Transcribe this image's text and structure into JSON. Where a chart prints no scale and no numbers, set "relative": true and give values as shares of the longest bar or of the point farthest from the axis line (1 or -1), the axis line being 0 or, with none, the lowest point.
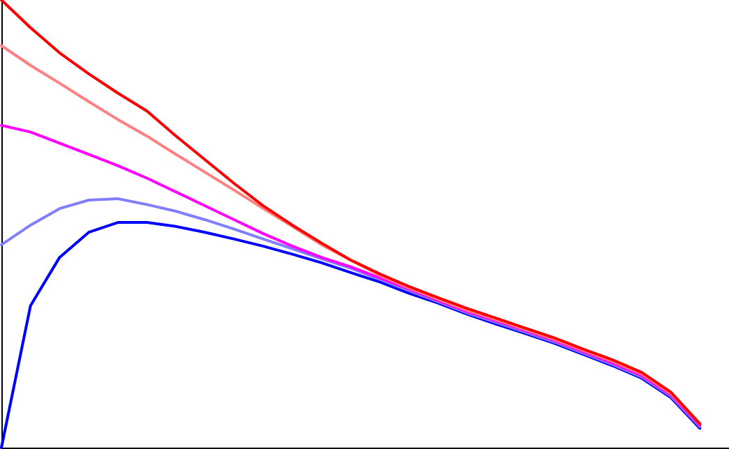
{
  "chart_data": {
    "type": "line",
    "relative": true,
    "marker": "none",
    "line_style": "solid",
    "grid": false,
    "tick_labels": false,
    "categories": [
      null,
      null,
      null,
      null,
      null,
      null,
      null,
      null,
      null,
      null,
      null,
      null,
      null,
      null,
      null,
      null,
      null,
      null,
      null,
      null,
      null,
      null,
      null,
      null,
      null,
      null
    ],
    "series": [
      {
        "color": "#0000ff",
        "values": [
          0,
          0.317,
          0.425,
          0.481,
          0.503,
          0.503,
          0.494,
          0.481,
          0.466,
          0.45,
          0.432,
          0.413,
          0.391,
          0.37,
          0.345,
          0.323,
          0.298,
          0.276,
          0.255,
          0.233,
          0.208,
          0.183,
          0.155,
          0.112,
          0.043,
          null
        ]
      },
      {
        "color": "#8080ff",
        "values": [
          0.453,
          0.497,
          0.534,
          0.553,
          0.556,
          0.543,
          0.528,
          0.509,
          0.488,
          0.466,
          0.444,
          0.422,
          0.401,
          0.376,
          0.351,
          0.326,
          0.301,
          0.28,
          0.258,
          0.236,
          0.211,
          0.186,
          0.158,
          0.115,
          0.047,
          null
        ]
      },
      {
        "color": "#ff00ff",
        "values": [
          0.72,
          0.705,
          0.68,
          0.655,
          0.63,
          0.602,
          0.571,
          0.54,
          0.509,
          0.478,
          0.45,
          0.425,
          0.404,
          0.379,
          0.354,
          0.329,
          0.304,
          0.283,
          0.261,
          0.239,
          0.214,
          0.189,
          0.161,
          0.118,
          0.05,
          null
        ]
      },
      {
        "color": "#ff8080",
        "values": [
          0.898,
          0.854,
          0.814,
          0.773,
          0.733,
          0.696,
          0.655,
          0.615,
          0.575,
          0.534,
          0.494,
          0.453,
          0.419,
          0.385,
          0.357,
          0.332,
          0.307,
          0.286,
          0.264,
          0.242,
          0.217,
          0.193,
          0.165,
          0.121,
          0.053,
          null
        ]
      },
      {
        "color": "#ff0000",
        "values": [
          1,
          0.938,
          0.882,
          0.835,
          0.792,
          0.752,
          0.696,
          0.643,
          0.59,
          0.54,
          0.497,
          0.457,
          0.419,
          0.388,
          0.36,
          0.335,
          0.311,
          0.289,
          0.267,
          0.245,
          0.22,
          0.196,
          0.168,
          0.124,
          0.053,
          null
        ]
      }
    ]
  }
}
